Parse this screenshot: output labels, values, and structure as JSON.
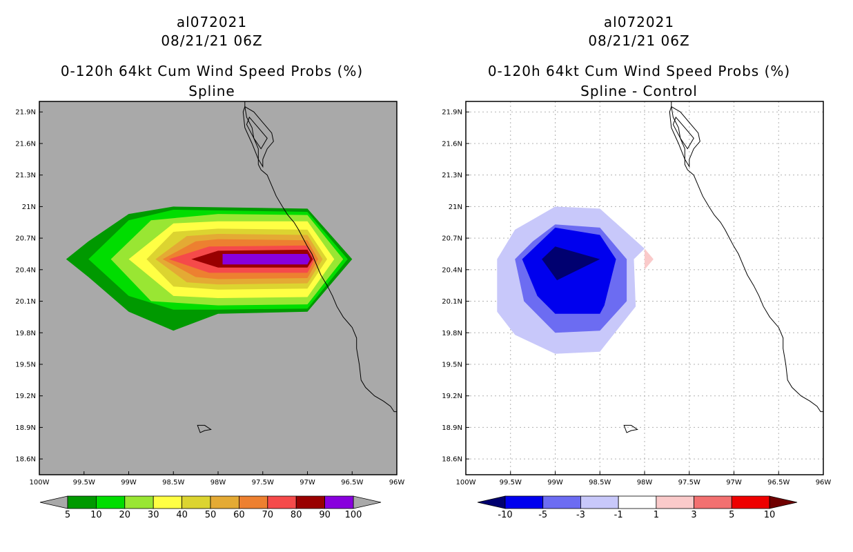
{
  "chart_data": [
    {
      "type": "contour-map",
      "title": [
        "al072021",
        "08/21/21 06Z",
        "0-120h 64kt Cum Wind Speed Probs (%)",
        "Spline"
      ],
      "xlabel": "",
      "ylabel": "",
      "xlim": [
        -100,
        -96
      ],
      "ylim": [
        18.45,
        22.0
      ],
      "x_ticks": [
        "100W",
        "99.5W",
        "99W",
        "98.5W",
        "98W",
        "97.5W",
        "97W",
        "96.5W",
        "96W"
      ],
      "y_ticks": [
        "18.6N",
        "18.9N",
        "19.2N",
        "19.5N",
        "19.8N",
        "20.1N",
        "20.4N",
        "20.7N",
        "21N",
        "21.3N",
        "21.6N",
        "21.9N"
      ],
      "grid": false,
      "background": "#a9a9a9",
      "colorbar": {
        "labels": [
          "5",
          "10",
          "20",
          "30",
          "40",
          "50",
          "60",
          "70",
          "80",
          "90",
          "100"
        ],
        "colors": [
          "#009900",
          "#00dd00",
          "#99e633",
          "#ffff44",
          "#dcd430",
          "#e4aa34",
          "#ed8030",
          "#f54a4a",
          "#990000",
          "#8800dd"
        ],
        "end_color": "#a9a9a9"
      },
      "contours": [
        {
          "level": 5,
          "color": "#009900",
          "points": [
            [
              -99.7,
              20.5
            ],
            [
              -99.45,
              20.67
            ],
            [
              -99.0,
              20.93
            ],
            [
              -98.5,
              21.0
            ],
            [
              -97.0,
              20.98
            ],
            [
              -96.5,
              20.5
            ],
            [
              -97.0,
              20.0
            ],
            [
              -98.0,
              19.98
            ],
            [
              -98.5,
              19.82
            ],
            [
              -99.0,
              20.0
            ],
            [
              -99.45,
              20.33
            ]
          ]
        },
        {
          "level": 10,
          "color": "#00dd00",
          "points": [
            [
              -99.45,
              20.5
            ],
            [
              -99.0,
              20.87
            ],
            [
              -98.5,
              20.97
            ],
            [
              -97.0,
              20.95
            ],
            [
              -96.55,
              20.5
            ],
            [
              -97.0,
              20.03
            ],
            [
              -98.0,
              20.02
            ],
            [
              -98.5,
              20.02
            ],
            [
              -99.0,
              20.15
            ]
          ]
        },
        {
          "level": 20,
          "color": "#99e633",
          "points": [
            [
              -99.2,
              20.5
            ],
            [
              -98.75,
              20.87
            ],
            [
              -98.0,
              20.93
            ],
            [
              -97.0,
              20.92
            ],
            [
              -96.6,
              20.5
            ],
            [
              -97.0,
              20.07
            ],
            [
              -98.0,
              20.06
            ],
            [
              -98.75,
              20.1
            ]
          ]
        },
        {
          "level": 30,
          "color": "#ffff44",
          "points": [
            [
              -99.0,
              20.5
            ],
            [
              -98.5,
              20.84
            ],
            [
              -98.0,
              20.86
            ],
            [
              -97.0,
              20.86
            ],
            [
              -96.7,
              20.5
            ],
            [
              -97.0,
              20.14
            ],
            [
              -98.0,
              20.13
            ],
            [
              -98.5,
              20.15
            ]
          ]
        },
        {
          "level": 40,
          "color": "#dcd430",
          "points": [
            [
              -98.8,
              20.5
            ],
            [
              -98.5,
              20.76
            ],
            [
              -98.0,
              20.79
            ],
            [
              -97.0,
              20.78
            ],
            [
              -96.78,
              20.5
            ],
            [
              -97.0,
              20.22
            ],
            [
              -98.0,
              20.21
            ],
            [
              -98.5,
              20.24
            ]
          ]
        },
        {
          "level": 50,
          "color": "#e4aa34",
          "points": [
            [
              -98.7,
              20.5
            ],
            [
              -98.35,
              20.72
            ],
            [
              -98.0,
              20.74
            ],
            [
              -97.0,
              20.73
            ],
            [
              -96.83,
              20.5
            ],
            [
              -97.0,
              20.27
            ],
            [
              -98.0,
              20.26
            ],
            [
              -98.35,
              20.28
            ]
          ]
        },
        {
          "level": 60,
          "color": "#ed8030",
          "points": [
            [
              -98.62,
              20.5
            ],
            [
              -98.25,
              20.67
            ],
            [
              -98.0,
              20.69
            ],
            [
              -97.0,
              20.68
            ],
            [
              -96.88,
              20.5
            ],
            [
              -97.0,
              20.32
            ],
            [
              -98.0,
              20.31
            ],
            [
              -98.25,
              20.33
            ]
          ]
        },
        {
          "level": 70,
          "color": "#f54a4a",
          "points": [
            [
              -98.55,
              20.5
            ],
            [
              -98.1,
              20.62
            ],
            [
              -97.0,
              20.63
            ],
            [
              -96.92,
              20.5
            ],
            [
              -97.0,
              20.37
            ],
            [
              -98.1,
              20.37
            ]
          ]
        },
        {
          "level": 80,
          "color": "#990000",
          "points": [
            [
              -98.3,
              20.5
            ],
            [
              -98.0,
              20.58
            ],
            [
              -97.0,
              20.59
            ],
            [
              -96.94,
              20.5
            ],
            [
              -97.0,
              20.42
            ],
            [
              -98.0,
              20.42
            ]
          ]
        },
        {
          "level": 90,
          "color": "#8800dd",
          "points": [
            [
              -97.95,
              20.55
            ],
            [
              -97.0,
              20.55
            ],
            [
              -96.97,
              20.5
            ],
            [
              -97.0,
              20.45
            ],
            [
              -97.95,
              20.45
            ]
          ]
        }
      ]
    },
    {
      "type": "contour-map",
      "title": [
        "al072021",
        "08/21/21 06Z",
        "0-120h 64kt Cum Wind Speed Probs (%)",
        "Spline - Control"
      ],
      "xlabel": "",
      "ylabel": "",
      "xlim": [
        -100,
        -96
      ],
      "ylim": [
        18.45,
        22.0
      ],
      "x_ticks": [
        "100W",
        "99.5W",
        "99W",
        "98.5W",
        "98W",
        "97.5W",
        "97W",
        "96.5W",
        "96W"
      ],
      "y_ticks": [
        "18.6N",
        "18.9N",
        "19.2N",
        "19.5N",
        "19.8N",
        "20.1N",
        "20.4N",
        "20.7N",
        "21N",
        "21.3N",
        "21.6N",
        "21.9N"
      ],
      "grid": true,
      "background": "#ffffff",
      "colorbar": {
        "labels": [
          "-10",
          "-5",
          "-3",
          "-1",
          "1",
          "3",
          "5",
          "10"
        ],
        "colors": [
          "#0000ee",
          "#6c6cf2",
          "#c8c8fa",
          "#ffffff",
          "#facaca",
          "#f27070",
          "#ee0000"
        ],
        "end_left": "#000070",
        "end_right": "#700000"
      },
      "contours": [
        {
          "level": -1,
          "color": "#c8c8fa",
          "points": [
            [
              -99.0,
              21.0
            ],
            [
              -98.5,
              20.98
            ],
            [
              -98.0,
              20.6
            ],
            [
              -98.12,
              20.5
            ],
            [
              -98.1,
              20.05
            ],
            [
              -98.5,
              19.62
            ],
            [
              -99.0,
              19.6
            ],
            [
              -99.45,
              19.78
            ],
            [
              -99.65,
              20.0
            ],
            [
              -99.65,
              20.5
            ],
            [
              -99.45,
              20.78
            ]
          ]
        },
        {
          "level": -3,
          "color": "#6c6cf2",
          "points": [
            [
              -99.0,
              20.83
            ],
            [
              -98.5,
              20.8
            ],
            [
              -98.2,
              20.5
            ],
            [
              -98.2,
              20.1
            ],
            [
              -98.5,
              19.82
            ],
            [
              -99.0,
              19.8
            ],
            [
              -99.35,
              20.1
            ],
            [
              -99.45,
              20.5
            ],
            [
              -99.25,
              20.67
            ]
          ]
        },
        {
          "level": -5,
          "color": "#0000ee",
          "points": [
            [
              -99.0,
              20.8
            ],
            [
              -98.5,
              20.73
            ],
            [
              -98.32,
              20.5
            ],
            [
              -98.45,
              20.06
            ],
            [
              -98.5,
              19.98
            ],
            [
              -99.0,
              19.98
            ],
            [
              -99.2,
              20.15
            ],
            [
              -99.37,
              20.5
            ]
          ]
        },
        {
          "level": -10,
          "color": "#000070",
          "points": [
            [
              -99.0,
              20.62
            ],
            [
              -98.5,
              20.5
            ],
            [
              -98.98,
              20.3
            ],
            [
              -99.15,
              20.5
            ]
          ]
        },
        {
          "level": 1,
          "color": "#facaca",
          "points": [
            [
              -98.0,
              20.6
            ],
            [
              -97.9,
              20.5
            ],
            [
              -98.0,
              20.4
            ]
          ]
        }
      ]
    }
  ],
  "coastline": [
    [
      -97.7,
      22.05
    ],
    [
      -97.7,
      21.95
    ],
    [
      -97.68,
      21.85
    ],
    [
      -97.62,
      21.75
    ],
    [
      -97.6,
      21.65
    ],
    [
      -97.55,
      21.55
    ],
    [
      -97.55,
      21.4
    ],
    [
      -97.52,
      21.35
    ],
    [
      -97.45,
      21.3
    ],
    [
      -97.4,
      21.2
    ],
    [
      -97.35,
      21.1
    ],
    [
      -97.28,
      21.0
    ],
    [
      -97.22,
      20.92
    ],
    [
      -97.15,
      20.85
    ],
    [
      -97.1,
      20.78
    ],
    [
      -97.05,
      20.7
    ],
    [
      -97.0,
      20.62
    ],
    [
      -96.95,
      20.55
    ],
    [
      -96.9,
      20.45
    ],
    [
      -96.85,
      20.35
    ],
    [
      -96.78,
      20.25
    ],
    [
      -96.72,
      20.15
    ],
    [
      -96.67,
      20.05
    ],
    [
      -96.6,
      19.95
    ],
    [
      -96.5,
      19.85
    ],
    [
      -96.45,
      19.75
    ],
    [
      -96.45,
      19.65
    ],
    [
      -96.42,
      19.5
    ],
    [
      -96.4,
      19.35
    ],
    [
      -96.35,
      19.28
    ],
    [
      -96.25,
      19.2
    ],
    [
      -96.15,
      19.15
    ],
    [
      -96.07,
      19.1
    ],
    [
      -96.03,
      19.05
    ],
    [
      -96.0,
      19.05
    ]
  ],
  "lagoon": [
    [
      -97.7,
      21.95
    ],
    [
      -97.6,
      21.9
    ],
    [
      -97.45,
      21.75
    ],
    [
      -97.4,
      21.7
    ],
    [
      -97.38,
      21.62
    ],
    [
      -97.45,
      21.55
    ],
    [
      -97.5,
      21.45
    ],
    [
      -97.5,
      21.38
    ],
    [
      -97.55,
      21.45
    ],
    [
      -97.62,
      21.6
    ],
    [
      -97.7,
      21.75
    ],
    [
      -97.72,
      21.9
    ],
    [
      -97.7,
      21.95
    ]
  ],
  "lagoon_inner": [
    [
      -97.65,
      21.85
    ],
    [
      -97.55,
      21.75
    ],
    [
      -97.45,
      21.65
    ],
    [
      -97.52,
      21.55
    ],
    [
      -97.6,
      21.65
    ],
    [
      -97.68,
      21.78
    ],
    [
      -97.65,
      21.85
    ]
  ],
  "island": [
    [
      -98.23,
      18.92
    ],
    [
      -98.15,
      18.92
    ],
    [
      -98.08,
      18.88
    ],
    [
      -98.15,
      18.87
    ],
    [
      -98.2,
      18.85
    ],
    [
      -98.23,
      18.92
    ]
  ]
}
